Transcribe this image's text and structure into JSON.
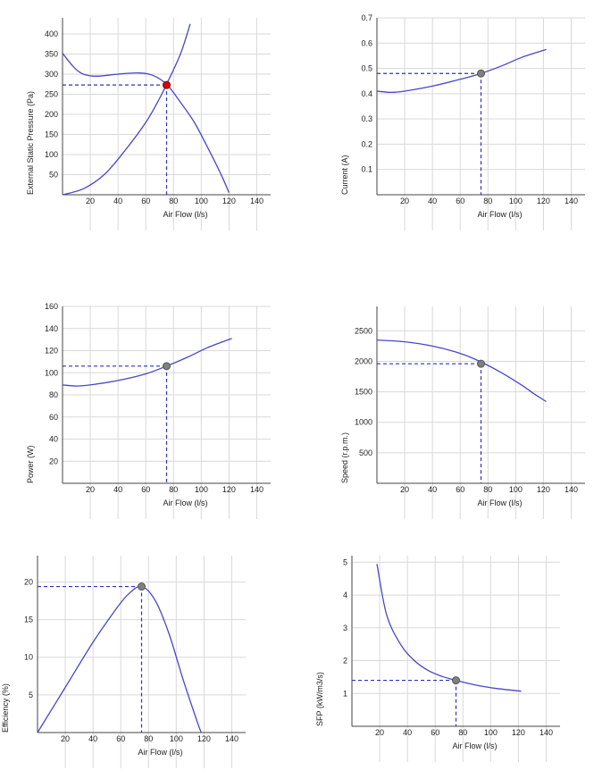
{
  "chart_data": [
    {
      "type": "line",
      "xlabel": "Air Flow (l/s)",
      "ylabel": "External Static Pressure (Pa)",
      "xlim": [
        0,
        150
      ],
      "ylim": [
        0,
        440
      ],
      "xticks": [
        20,
        40,
        60,
        80,
        100,
        120,
        140
      ],
      "yticks": [
        50,
        100,
        150,
        200,
        250,
        300,
        350,
        400
      ],
      "grid": true,
      "series": [
        {
          "values_xy": [
            [
              0,
              352
            ],
            [
              8,
              318
            ],
            [
              15,
              300
            ],
            [
              25,
              295
            ],
            [
              40,
              300
            ],
            [
              55,
              303
            ],
            [
              65,
              297
            ],
            [
              75,
              275
            ],
            [
              85,
              230
            ],
            [
              95,
              180
            ],
            [
              105,
              115
            ],
            [
              115,
              45
            ],
            [
              120,
              5
            ]
          ]
        },
        {
          "values_xy": [
            [
              0,
              0
            ],
            [
              15,
              15
            ],
            [
              30,
              50
            ],
            [
              45,
              110
            ],
            [
              60,
              180
            ],
            [
              70,
              240
            ],
            [
              75,
              275
            ],
            [
              85,
              350
            ],
            [
              92,
              425
            ]
          ]
        }
      ],
      "operating_point": {
        "x": 75,
        "y": 273,
        "color": "#dd0000"
      }
    },
    {
      "type": "line",
      "xlabel": "Air Flow (l/s)",
      "ylabel": "Current (A)",
      "xlim": [
        0,
        150
      ],
      "ylim": [
        0,
        0.7
      ],
      "xticks": [
        20,
        40,
        60,
        80,
        100,
        120,
        140
      ],
      "yticks": [
        0.1,
        0.2,
        0.3,
        0.4,
        0.5,
        0.6,
        0.7
      ],
      "grid": true,
      "series": [
        {
          "values_xy": [
            [
              0,
              0.41
            ],
            [
              10,
              0.405
            ],
            [
              20,
              0.41
            ],
            [
              40,
              0.43
            ],
            [
              60,
              0.457
            ],
            [
              75,
              0.48
            ],
            [
              90,
              0.51
            ],
            [
              105,
              0.545
            ],
            [
              122,
              0.575
            ]
          ]
        }
      ],
      "operating_point": {
        "x": 75,
        "y": 0.48,
        "color": "#808080"
      }
    },
    {
      "type": "line",
      "xlabel": "Air Flow (l/s)",
      "ylabel": "Power (W)",
      "xlim": [
        0,
        150
      ],
      "ylim": [
        0,
        160
      ],
      "xticks": [
        20,
        40,
        60,
        80,
        100,
        120,
        140
      ],
      "yticks": [
        20,
        40,
        60,
        80,
        100,
        120,
        140,
        160
      ],
      "grid": true,
      "series": [
        {
          "values_xy": [
            [
              0,
              89
            ],
            [
              10,
              88
            ],
            [
              20,
              89
            ],
            [
              40,
              93
            ],
            [
              60,
              99
            ],
            [
              75,
              106
            ],
            [
              90,
              114
            ],
            [
              105,
              123
            ],
            [
              122,
              131
            ]
          ]
        }
      ],
      "operating_point": {
        "x": 75,
        "y": 106,
        "color": "#808080"
      }
    },
    {
      "type": "line",
      "xlabel": "Air Flow (l/s)",
      "ylabel": "Speed (r.p.m.)",
      "xlim": [
        0,
        150
      ],
      "ylim": [
        0,
        2900
      ],
      "xticks": [
        20,
        40,
        60,
        80,
        100,
        120,
        140
      ],
      "yticks": [
        500,
        1000,
        1500,
        2000,
        2500
      ],
      "grid": true,
      "series": [
        {
          "values_xy": [
            [
              0,
              2350
            ],
            [
              20,
              2320
            ],
            [
              40,
              2250
            ],
            [
              60,
              2130
            ],
            [
              75,
              1990
            ],
            [
              90,
              1810
            ],
            [
              105,
              1600
            ],
            [
              113,
              1470
            ],
            [
              122,
              1340
            ]
          ]
        }
      ],
      "operating_point": {
        "x": 75,
        "y": 1960,
        "color": "#808080"
      }
    },
    {
      "type": "line",
      "xlabel": "Air Flow (l/s)",
      "ylabel": "Efficiency (%)",
      "xlim": [
        0,
        150
      ],
      "ylim": [
        0,
        23.5
      ],
      "xticks": [
        20,
        40,
        60,
        80,
        100,
        120,
        140
      ],
      "yticks": [
        5,
        10,
        15,
        20
      ],
      "grid": true,
      "series": [
        {
          "values_xy": [
            [
              0,
              0
            ],
            [
              20,
              6
            ],
            [
              40,
              12
            ],
            [
              55,
              16
            ],
            [
              65,
              18.3
            ],
            [
              75,
              19.4
            ],
            [
              85,
              17.5
            ],
            [
              95,
              13
            ],
            [
              105,
              7
            ],
            [
              115,
              1.5
            ],
            [
              118,
              0
            ]
          ]
        }
      ],
      "operating_point": {
        "x": 75,
        "y": 19.4,
        "color": "#808080"
      }
    },
    {
      "type": "line",
      "xlabel": "Air Flow (l/s)",
      "ylabel": "SFP (kW/m3/s)",
      "xlim": [
        0,
        150
      ],
      "ylim": [
        0,
        5.2
      ],
      "xticks": [
        20,
        40,
        60,
        80,
        100,
        120,
        140
      ],
      "yticks": [
        1,
        2,
        3,
        4,
        5
      ],
      "grid": true,
      "series": [
        {
          "values_xy": [
            [
              18,
              4.95
            ],
            [
              25,
              3.4
            ],
            [
              35,
              2.5
            ],
            [
              45,
              2.0
            ],
            [
              55,
              1.7
            ],
            [
              65,
              1.52
            ],
            [
              75,
              1.4
            ],
            [
              90,
              1.25
            ],
            [
              105,
              1.15
            ],
            [
              122,
              1.07
            ]
          ]
        }
      ],
      "operating_point": {
        "x": 75,
        "y": 1.4,
        "color": "#808080"
      }
    }
  ]
}
